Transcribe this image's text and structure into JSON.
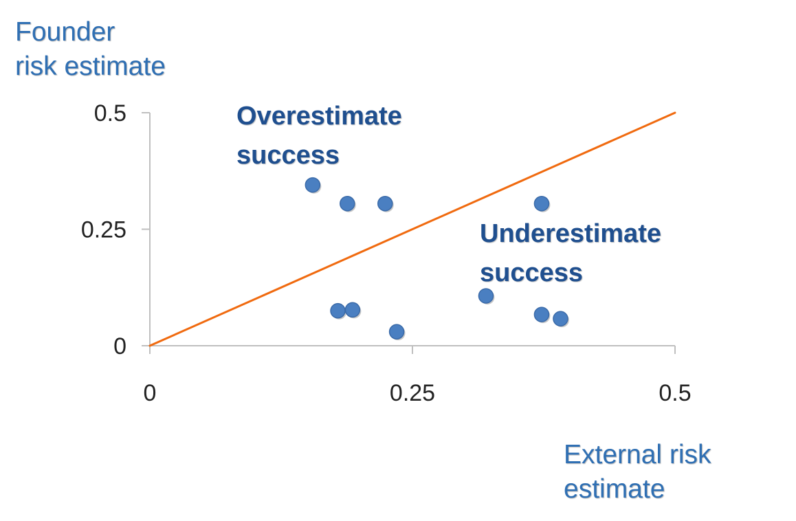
{
  "chart_data": {
    "type": "scatter",
    "title": "",
    "ylabel_lines": [
      "Founder",
      "risk estimate"
    ],
    "xlabel_lines": [
      "External risk",
      "estimate"
    ],
    "xlim": [
      0,
      0.5
    ],
    "ylim": [
      0,
      0.5
    ],
    "x_ticks": [
      0,
      0.25,
      0.5
    ],
    "y_ticks": [
      0,
      0.25,
      0.5
    ],
    "x_tick_labels": [
      "0",
      "0.25",
      "0.5"
    ],
    "y_tick_labels": [
      "0",
      "0.25",
      "0.5"
    ],
    "grid": false,
    "series": [
      {
        "points": [
          {
            "x": 0.155,
            "y": 0.345
          },
          {
            "x": 0.188,
            "y": 0.305
          },
          {
            "x": 0.224,
            "y": 0.305
          },
          {
            "x": 0.373,
            "y": 0.305
          },
          {
            "x": 0.179,
            "y": 0.075
          },
          {
            "x": 0.193,
            "y": 0.077
          },
          {
            "x": 0.235,
            "y": 0.03
          },
          {
            "x": 0.32,
            "y": 0.107
          },
          {
            "x": 0.373,
            "y": 0.067
          },
          {
            "x": 0.391,
            "y": 0.058
          }
        ]
      }
    ],
    "reference_line": {
      "from": [
        0,
        0
      ],
      "to": [
        0.5,
        0.5
      ]
    },
    "annotations": [
      {
        "lines": [
          "Overestimate",
          "success"
        ]
      },
      {
        "lines": [
          "Underestimate",
          "success"
        ]
      }
    ],
    "colors": {
      "points": "#4a7fc1",
      "point_stroke": "#3a6aa8",
      "reference_line": "#f06a0f",
      "axis": "#bfbfbf",
      "axis_title": "#2f6fb3",
      "annotation": "#1f4f8f"
    }
  }
}
